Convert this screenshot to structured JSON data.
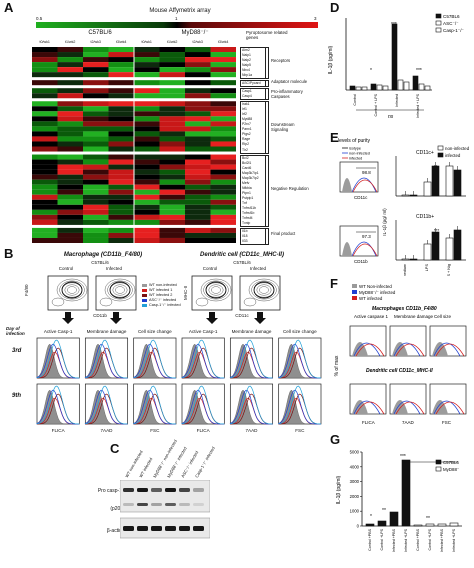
{
  "panels": {
    "A": "A",
    "B": "B",
    "C": "C",
    "D": "D",
    "E": "E",
    "F": "F",
    "G": "G"
  },
  "panelA": {
    "title": "Mouse Affymetrix array",
    "scale_min": "0.5",
    "scale_mid": "1",
    "scale_max": "3",
    "strain_left": "C57BL/6",
    "strain_right": "MyD88⁻/⁻",
    "gene_header": "Pyroptosome related genes",
    "timepoints": [
      "t0/wk1",
      "t1/wk2",
      "t2/wk3",
      "t3/wk4",
      "t0/wk1",
      "t1/wk2",
      "t2/wk3",
      "t3/wk4"
    ],
    "groups": [
      {
        "label": "Receptors",
        "genes": [
          "Aim2",
          "Naip1",
          "Naip2",
          "Naip5",
          "Nlrc4",
          "Nlrp1a"
        ]
      },
      {
        "label": "Adaptator molecule",
        "genes": [
          "ASC/Pycard"
        ]
      },
      {
        "label": "Pro-inflammatory Caspases",
        "genes": [
          "Casp1",
          "Casp4"
        ]
      },
      {
        "label": "Downstream Signaling",
        "genes": [
          "Irak1",
          "Irf1",
          "Irf2",
          "Myd88",
          "P2rx7",
          "Panx1",
          "Ptgs2",
          "Rage",
          "Rip2",
          "Tlr2"
        ]
      },
      {
        "label": "Negative Regulation",
        "genes": [
          "Bcl2",
          "Bcl2l1",
          "Card6",
          "Map3k7ip1",
          "Map3k7ip2",
          "Mefv",
          "Nfkbia",
          "Ptpn1",
          "Pstpip1",
          "Tnf",
          "Tnfrsf11b",
          "Tnfrsf1b",
          "Tnfrsf4",
          "Txnip"
        ]
      },
      {
        "label": "Final product",
        "genes": [
          "Il1b",
          "Il18",
          "Il33"
        ]
      }
    ]
  },
  "panelB": {
    "left_title": "Macrophage (CD11b_F4/80)",
    "right_title": "Dendritic cell (CD11c_MHC-II)",
    "left_strain": "C57BL/6",
    "right_strain": "C57BL/6",
    "control": "Control",
    "infected": "Infected",
    "left_yaxis": "F4/80",
    "left_xaxis": "CD11b",
    "right_yaxis": "MHC-II",
    "right_xaxis": "CD11c",
    "legend": [
      "WT non-infected",
      "WT infected 1",
      "WT infected 2",
      "ASC⁻/⁻ infected",
      "Casp-1⁻/⁻ infected"
    ],
    "legend_colors": [
      "#9a9a9a",
      "#d21f1f",
      "#7a1010",
      "#1f3fd2",
      "#22a0d8"
    ],
    "day_label": "Day of infection",
    "days": [
      "3rd",
      "9th"
    ],
    "columns": [
      "Active Casp-1",
      "Membrane damage",
      "Cell size change",
      "Active Casp-1",
      "Membrane damage",
      "Cell size change"
    ],
    "xlabels": [
      "FLICA",
      "7AAD",
      "FSC",
      "FLICA",
      "7AAD",
      "FSC"
    ]
  },
  "panelC": {
    "lanes": [
      "WT non-infected",
      "WT infected",
      "MyD88⁻/⁻ non-infected",
      "MyD88⁻/⁻ infected",
      "ASC⁻/⁻ infected",
      "Casp-1⁻/⁻ infected"
    ],
    "rows": [
      "Pro casp-1",
      "(p20)",
      "β-actin"
    ]
  },
  "panelD": {
    "ylabel": "IL-1β (pg/ml)",
    "legend": [
      "C57BL6",
      "ASC⁻/⁻",
      "Casp-1⁻/⁻"
    ],
    "stars": [
      "***",
      "*",
      "***"
    ],
    "ns": "ns",
    "categories": [
      "Control",
      "Control + LPS",
      "Infected",
      "Infected + LPS"
    ]
  },
  "panelE": {
    "purity_title": "levels of purity",
    "purity_legend": [
      "isotype",
      "non-infected",
      "infected"
    ],
    "purity_values": [
      "98.8",
      "97.3"
    ],
    "xlabels": [
      "CD11c",
      "CD11b"
    ],
    "chart1_title": "CD11c+",
    "chart2_title": "CD11b+",
    "legend": [
      "non-infected",
      "infected"
    ],
    "ylabel": "IL-1β (pg/ ml)",
    "categories": [
      "medium",
      "LPS",
      "LPS + Nig"
    ],
    "stars": [
      "**",
      "***"
    ]
  },
  "panelF": {
    "title_top": "Macrophages CD11b_F4/80",
    "title_bottom": "Dendritic cell CD11c_MHC-II",
    "legend": [
      "WT Non-infected",
      "MyD88⁻/⁻ infected",
      "WT infected"
    ],
    "legend_colors": [
      "#9a9a9a",
      "#1f3fd2",
      "#d21f1f"
    ],
    "columns": [
      "Active caspase 1",
      "Membrane damage",
      "Cell size"
    ],
    "ylabel": "% of max",
    "xlabels": [
      "FLICA",
      "7AAD",
      "FSC"
    ]
  },
  "panelG": {
    "ylabel": "IL-1β (pg/ml)",
    "legend": [
      "C57BL6",
      "MyD88⁻"
    ],
    "yticks": [
      "0",
      "1000",
      "2000",
      "3000",
      "4000",
      "5000"
    ],
    "stars": [
      "***",
      "*",
      "**",
      "**"
    ],
    "categories": [
      "Control +PBS",
      "Control +LPS",
      "Infected +PBS",
      "Infected +LPS",
      "Control +PBS",
      "Control +LPS",
      "Infected +PBS",
      "Infected +LPS"
    ]
  }
}
